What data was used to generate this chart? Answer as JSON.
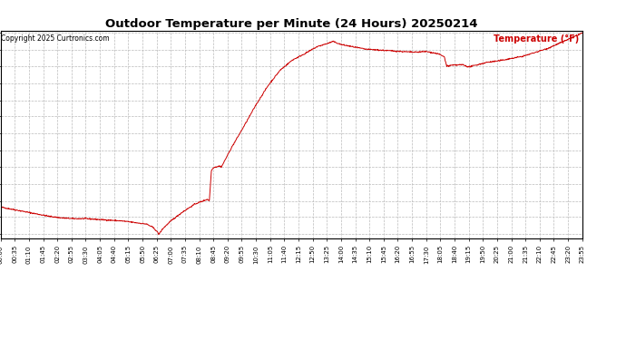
{
  "title": "Outdoor Temperature per Minute (24 Hours) 20250214",
  "copyright": "Copyright 2025 Curtronics.com",
  "legend_label": "Temperature (°F)",
  "line_color": "#cc0000",
  "legend_color": "#cc0000",
  "copyright_color": "#000000",
  "background_color": "#ffffff",
  "grid_color": "#bbbbbb",
  "yticks": [
    0.3,
    2.5,
    4.6,
    6.8,
    9.0,
    11.1,
    13.3,
    15.5,
    17.6,
    19.8,
    22.0,
    24.1,
    26.3
  ],
  "ylim_min": 0.3,
  "ylim_max": 26.3,
  "xtick_interval_minutes": 35,
  "total_minutes": 1440,
  "figwidth": 6.9,
  "figheight": 3.75,
  "dpi": 100,
  "keypoints": [
    [
      0,
      3.8
    ],
    [
      30,
      3.5
    ],
    [
      60,
      3.2
    ],
    [
      90,
      2.9
    ],
    [
      120,
      2.6
    ],
    [
      150,
      2.4
    ],
    [
      180,
      2.3
    ],
    [
      210,
      2.3
    ],
    [
      240,
      2.2
    ],
    [
      270,
      2.1
    ],
    [
      300,
      2.0
    ],
    [
      330,
      1.8
    ],
    [
      360,
      1.6
    ],
    [
      375,
      1.2
    ],
    [
      385,
      0.7
    ],
    [
      390,
      0.3
    ],
    [
      395,
      0.6
    ],
    [
      400,
      1.0
    ],
    [
      420,
      2.0
    ],
    [
      450,
      3.2
    ],
    [
      480,
      4.2
    ],
    [
      510,
      4.8
    ],
    [
      515,
      4.6
    ],
    [
      520,
      8.5
    ],
    [
      525,
      8.9
    ],
    [
      540,
      9.1
    ],
    [
      545,
      9.0
    ],
    [
      560,
      10.5
    ],
    [
      570,
      11.5
    ],
    [
      600,
      14.2
    ],
    [
      630,
      17.0
    ],
    [
      660,
      19.5
    ],
    [
      690,
      21.5
    ],
    [
      720,
      22.8
    ],
    [
      750,
      23.6
    ],
    [
      780,
      24.5
    ],
    [
      810,
      25.0
    ],
    [
      820,
      25.2
    ],
    [
      830,
      25.0
    ],
    [
      840,
      24.8
    ],
    [
      870,
      24.5
    ],
    [
      900,
      24.2
    ],
    [
      930,
      24.1
    ],
    [
      960,
      24.0
    ],
    [
      990,
      23.9
    ],
    [
      1020,
      23.8
    ],
    [
      1050,
      23.9
    ],
    [
      1080,
      23.6
    ],
    [
      1095,
      23.2
    ],
    [
      1100,
      22.1
    ],
    [
      1105,
      22.0
    ],
    [
      1110,
      22.1
    ],
    [
      1140,
      22.2
    ],
    [
      1155,
      21.9
    ],
    [
      1170,
      22.1
    ],
    [
      1200,
      22.5
    ],
    [
      1230,
      22.7
    ],
    [
      1260,
      23.0
    ],
    [
      1290,
      23.3
    ],
    [
      1320,
      23.8
    ],
    [
      1350,
      24.3
    ],
    [
      1380,
      25.0
    ],
    [
      1415,
      25.8
    ],
    [
      1435,
      26.3
    ]
  ]
}
